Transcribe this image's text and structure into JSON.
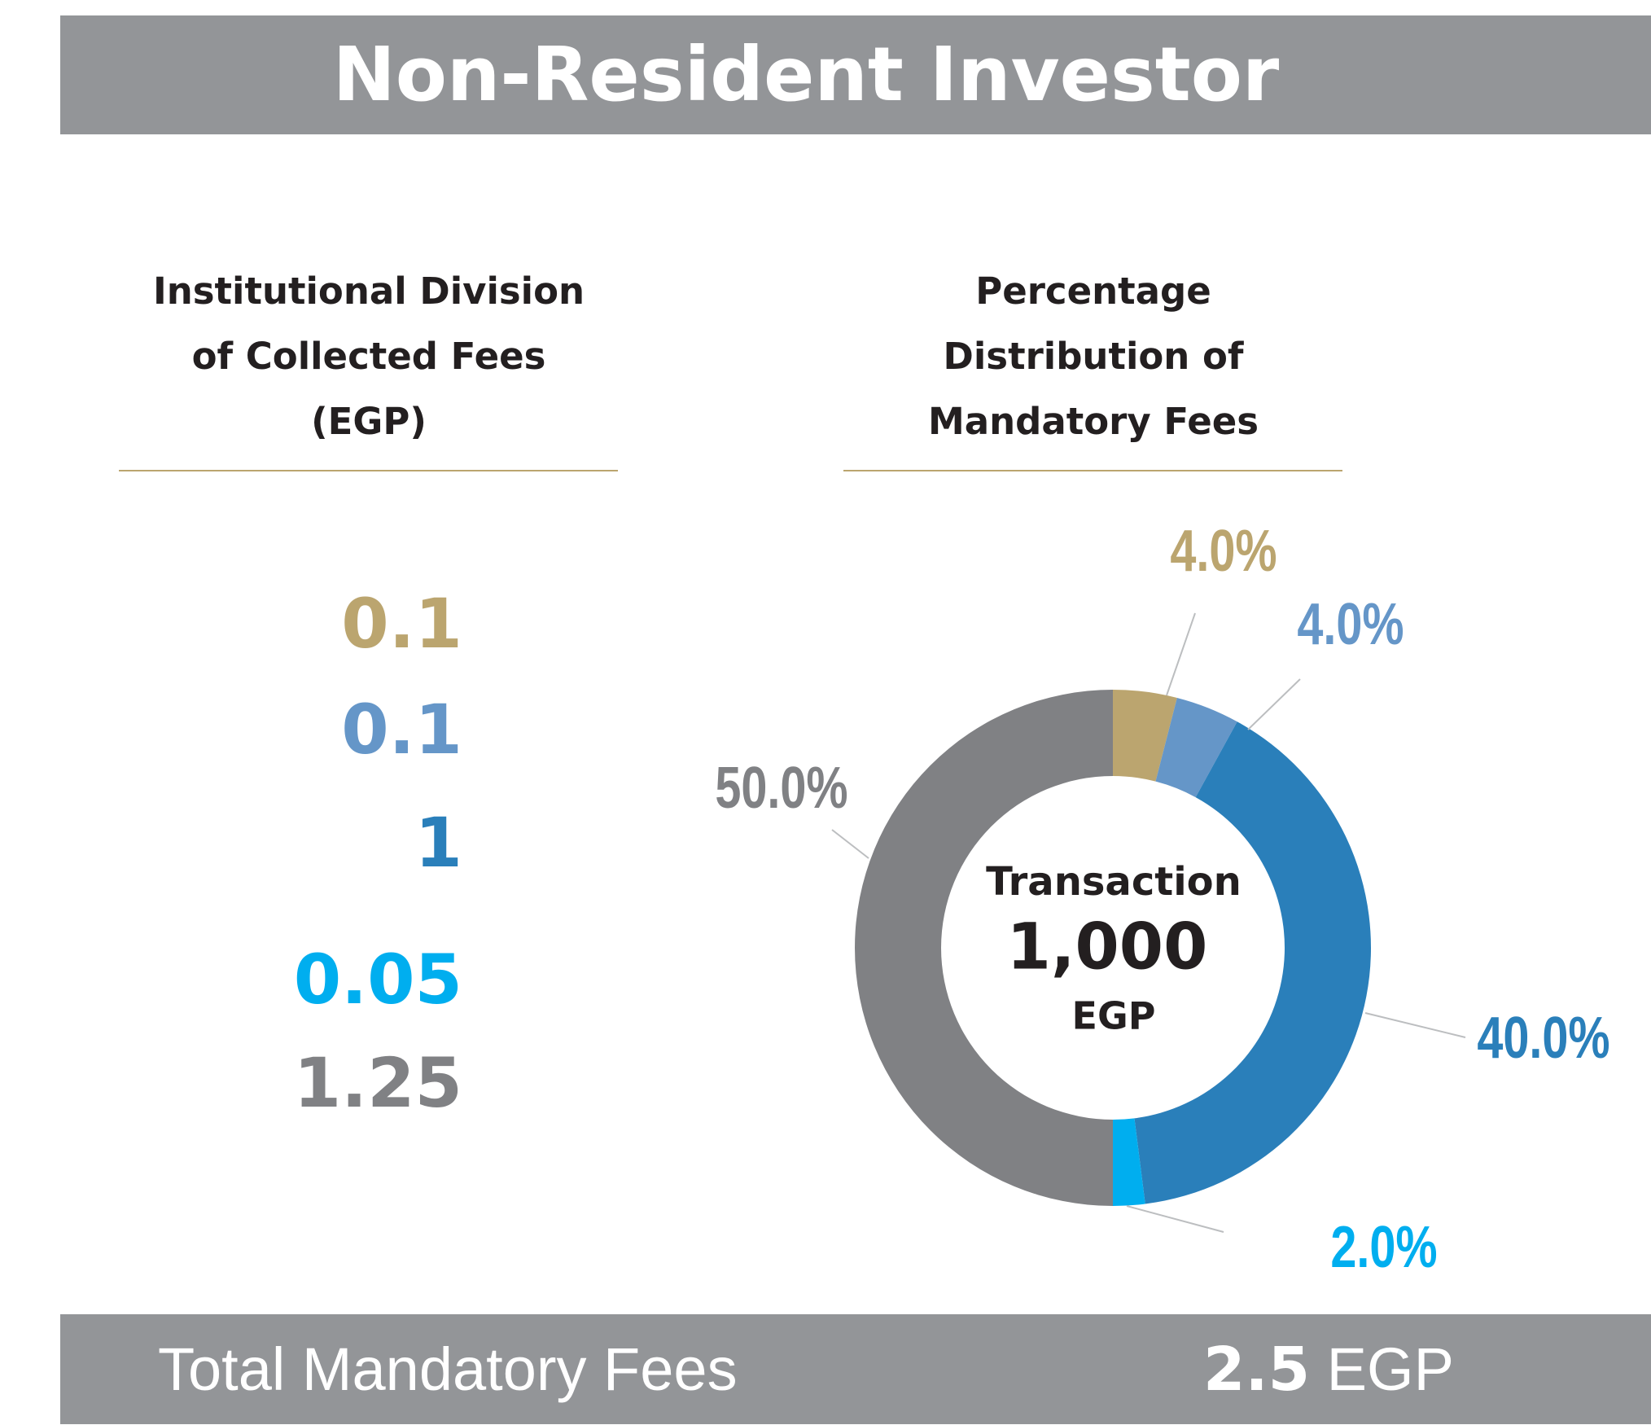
{
  "header": {
    "title": "Non-Resident Investor"
  },
  "fees": {
    "title": "Institutional Division of Collected Fees (EGP)",
    "values": [
      0.1,
      0.1,
      1,
      0.05,
      1.25
    ],
    "colors": [
      "#bba56f",
      "#6596c8",
      "#2a7fba",
      "#00aeef",
      "#808184"
    ]
  },
  "chart_data": {
    "type": "donut",
    "title": "Percentage Distribution of Mandatory Fees",
    "values": [
      4,
      4,
      40,
      2,
      50
    ],
    "value_labels": [
      "4.0%",
      "4.0%",
      "40.0%",
      "2.0%",
      "50.0%"
    ],
    "colors": [
      "#bba56f",
      "#6596c8",
      "#2a7fba",
      "#00aeef",
      "#808184"
    ],
    "center": {
      "title": "Transaction",
      "amount": "1,000",
      "unit": "EGP"
    }
  },
  "footer": {
    "label": "Total Mandatory Fees",
    "value": 2.5,
    "unit": "EGP"
  }
}
